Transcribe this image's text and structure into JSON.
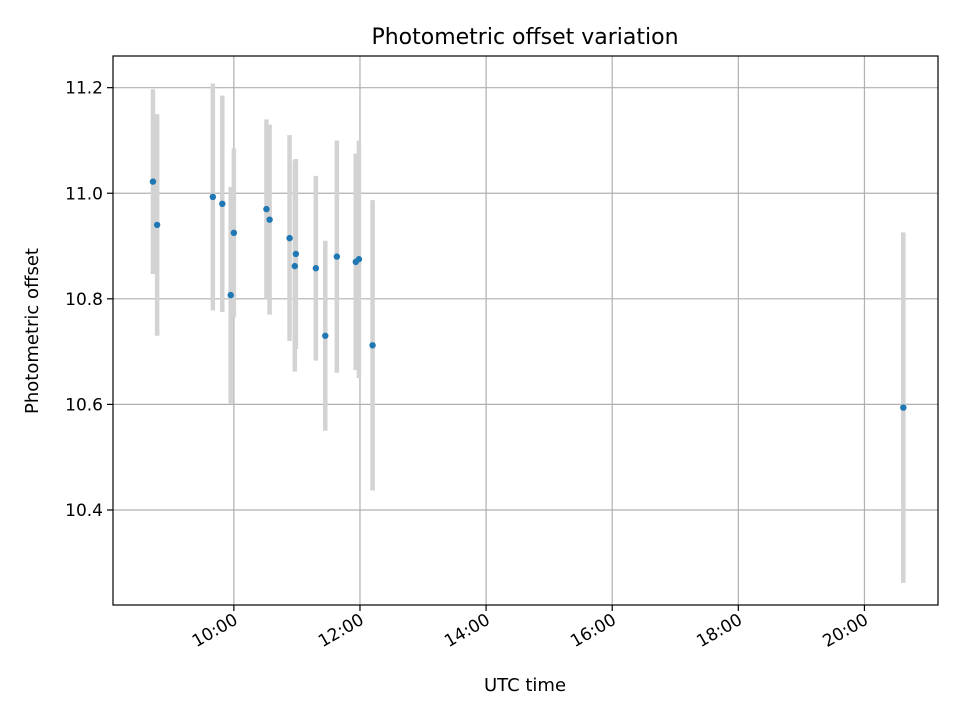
{
  "chart_data": {
    "type": "scatter",
    "title": "Photometric offset variation",
    "xlabel": "UTC time",
    "ylabel": "Photometric offset",
    "grid": true,
    "legend": "none",
    "colors": {
      "point": "#1f77b4",
      "errorbar": "#d3d3d3",
      "grid": "#b0b0b0",
      "axis": "#000000"
    },
    "xlim": [
      "08:05",
      "21:10"
    ],
    "ylim": [
      10.22,
      11.26
    ],
    "x_ticks": [
      "10:00",
      "12:00",
      "14:00",
      "16:00",
      "18:00",
      "20:00"
    ],
    "y_ticks": [
      10.4,
      10.6,
      10.8,
      11.0,
      11.2
    ],
    "series": [
      {
        "points": [
          {
            "x": "08:43",
            "y": 11.022,
            "err": 0.175
          },
          {
            "x": "08:47",
            "y": 10.94,
            "err": 0.21
          },
          {
            "x": "09:40",
            "y": 10.993,
            "err": 0.215
          },
          {
            "x": "09:49",
            "y": 10.98,
            "err": 0.205
          },
          {
            "x": "09:57",
            "y": 10.807,
            "err": 0.205
          },
          {
            "x": "10:00",
            "y": 10.925,
            "err": 0.16
          },
          {
            "x": "10:31",
            "y": 10.97,
            "err": 0.17
          },
          {
            "x": "10:34",
            "y": 10.95,
            "err": 0.18
          },
          {
            "x": "10:53",
            "y": 10.915,
            "err": 0.195
          },
          {
            "x": "10:58",
            "y": 10.862,
            "err": 0.2
          },
          {
            "x": "10:59",
            "y": 10.885,
            "err": 0.18
          },
          {
            "x": "11:18",
            "y": 10.858,
            "err": 0.175
          },
          {
            "x": "11:27",
            "y": 10.73,
            "err": 0.18
          },
          {
            "x": "11:38",
            "y": 10.88,
            "err": 0.22
          },
          {
            "x": "11:56",
            "y": 10.87,
            "err": 0.205
          },
          {
            "x": "11:59",
            "y": 10.875,
            "err": 0.225
          },
          {
            "x": "12:12",
            "y": 10.712,
            "err": 0.275
          },
          {
            "x": "20:37",
            "y": 10.594,
            "err": 0.332
          }
        ]
      }
    ]
  }
}
